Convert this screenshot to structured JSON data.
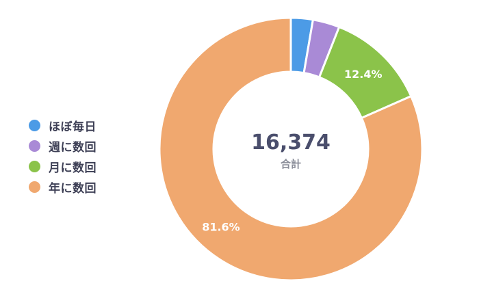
{
  "chart_data": {
    "type": "pie",
    "variant": "donut",
    "categories": [
      "ほぼ毎日",
      "週に数回",
      "月に数回",
      "年に数回"
    ],
    "values": [
      2.7,
      3.3,
      12.4,
      81.6
    ],
    "colors": [
      "#4c9be6",
      "#a98ad6",
      "#8bc34a",
      "#f0a86f"
    ],
    "data_labels": [
      "",
      "",
      "12.4%",
      "81.6%"
    ],
    "center_value": "16,374",
    "center_label": "合計",
    "legend_position": "left"
  },
  "legend": {
    "items": [
      {
        "label": "ほぼ毎日",
        "color": "#4c9be6"
      },
      {
        "label": "週に数回",
        "color": "#a98ad6"
      },
      {
        "label": "月に数回",
        "color": "#8bc34a"
      },
      {
        "label": "年に数回",
        "color": "#f0a86f"
      }
    ]
  }
}
